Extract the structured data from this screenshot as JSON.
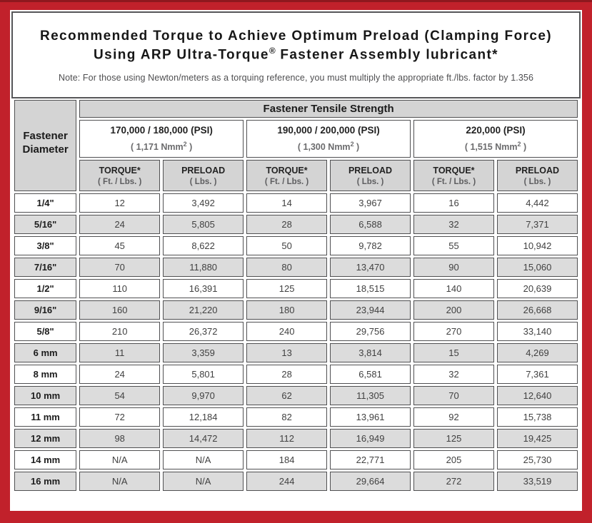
{
  "colors": {
    "frame_red": "#c1212b",
    "frame_top_dark": "#8e181e",
    "header_gray": "#d4d4d4",
    "row_gray": "#dcdcdc",
    "cell_border": "#505052"
  },
  "title": {
    "line1": "Recommended Torque to Achieve Optimum Preload (Clamping Force)",
    "line2_pre": "Using ARP Ultra-Torque",
    "line2_sup": "®",
    "line2_post": " Fastener Assembly lubricant*",
    "note": "Note: For those using Newton/meters as a torquing reference, you must multiply the appropriate ft./lbs. factor by 1.356"
  },
  "table": {
    "tensile_header": "Fastener Tensile Strength",
    "diameter_header": "Fastener\nDiameter",
    "groups": [
      {
        "psi": "170,000 / 180,000 (PSI)",
        "nmm_pre": "( 1,171 Nmm",
        "nmm_sup": "2",
        "nmm_post": " )"
      },
      {
        "psi": "190,000 / 200,000 (PSI)",
        "nmm_pre": "( 1,300 Nmm",
        "nmm_sup": "2",
        "nmm_post": " )"
      },
      {
        "psi": "220,000 (PSI)",
        "nmm_pre": "( 1,515 Nmm",
        "nmm_sup": "2",
        "nmm_post": " )"
      }
    ],
    "sub_headers": {
      "torque": "TORQUE*",
      "torque_unit": "( Ft. / Lbs. )",
      "preload": "PRELOAD",
      "preload_unit": "( Lbs. )"
    },
    "rows": [
      {
        "diameter": "1/4\"",
        "values": [
          "12",
          "3,492",
          "14",
          "3,967",
          "16",
          "4,442"
        ]
      },
      {
        "diameter": "5/16\"",
        "values": [
          "24",
          "5,805",
          "28",
          "6,588",
          "32",
          "7,371"
        ]
      },
      {
        "diameter": "3/8\"",
        "values": [
          "45",
          "8,622",
          "50",
          "9,782",
          "55",
          "10,942"
        ]
      },
      {
        "diameter": "7/16\"",
        "values": [
          "70",
          "11,880",
          "80",
          "13,470",
          "90",
          "15,060"
        ]
      },
      {
        "diameter": "1/2\"",
        "values": [
          "110",
          "16,391",
          "125",
          "18,515",
          "140",
          "20,639"
        ]
      },
      {
        "diameter": "9/16\"",
        "values": [
          "160",
          "21,220",
          "180",
          "23,944",
          "200",
          "26,668"
        ]
      },
      {
        "diameter": "5/8\"",
        "values": [
          "210",
          "26,372",
          "240",
          "29,756",
          "270",
          "33,140"
        ]
      },
      {
        "diameter": "6 mm",
        "values": [
          "11",
          "3,359",
          "13",
          "3,814",
          "15",
          "4,269"
        ]
      },
      {
        "diameter": "8 mm",
        "values": [
          "24",
          "5,801",
          "28",
          "6,581",
          "32",
          "7,361"
        ]
      },
      {
        "diameter": "10 mm",
        "values": [
          "54",
          "9,970",
          "62",
          "11,305",
          "70",
          "12,640"
        ]
      },
      {
        "diameter": "11 mm",
        "values": [
          "72",
          "12,184",
          "82",
          "13,961",
          "92",
          "15,738"
        ]
      },
      {
        "diameter": "12 mm",
        "values": [
          "98",
          "14,472",
          "112",
          "16,949",
          "125",
          "19,425"
        ]
      },
      {
        "diameter": "14 mm",
        "values": [
          "N/A",
          "N/A",
          "184",
          "22,771",
          "205",
          "25,730"
        ]
      },
      {
        "diameter": "16 mm",
        "values": [
          "N/A",
          "N/A",
          "244",
          "29,664",
          "272",
          "33,519"
        ]
      }
    ]
  }
}
